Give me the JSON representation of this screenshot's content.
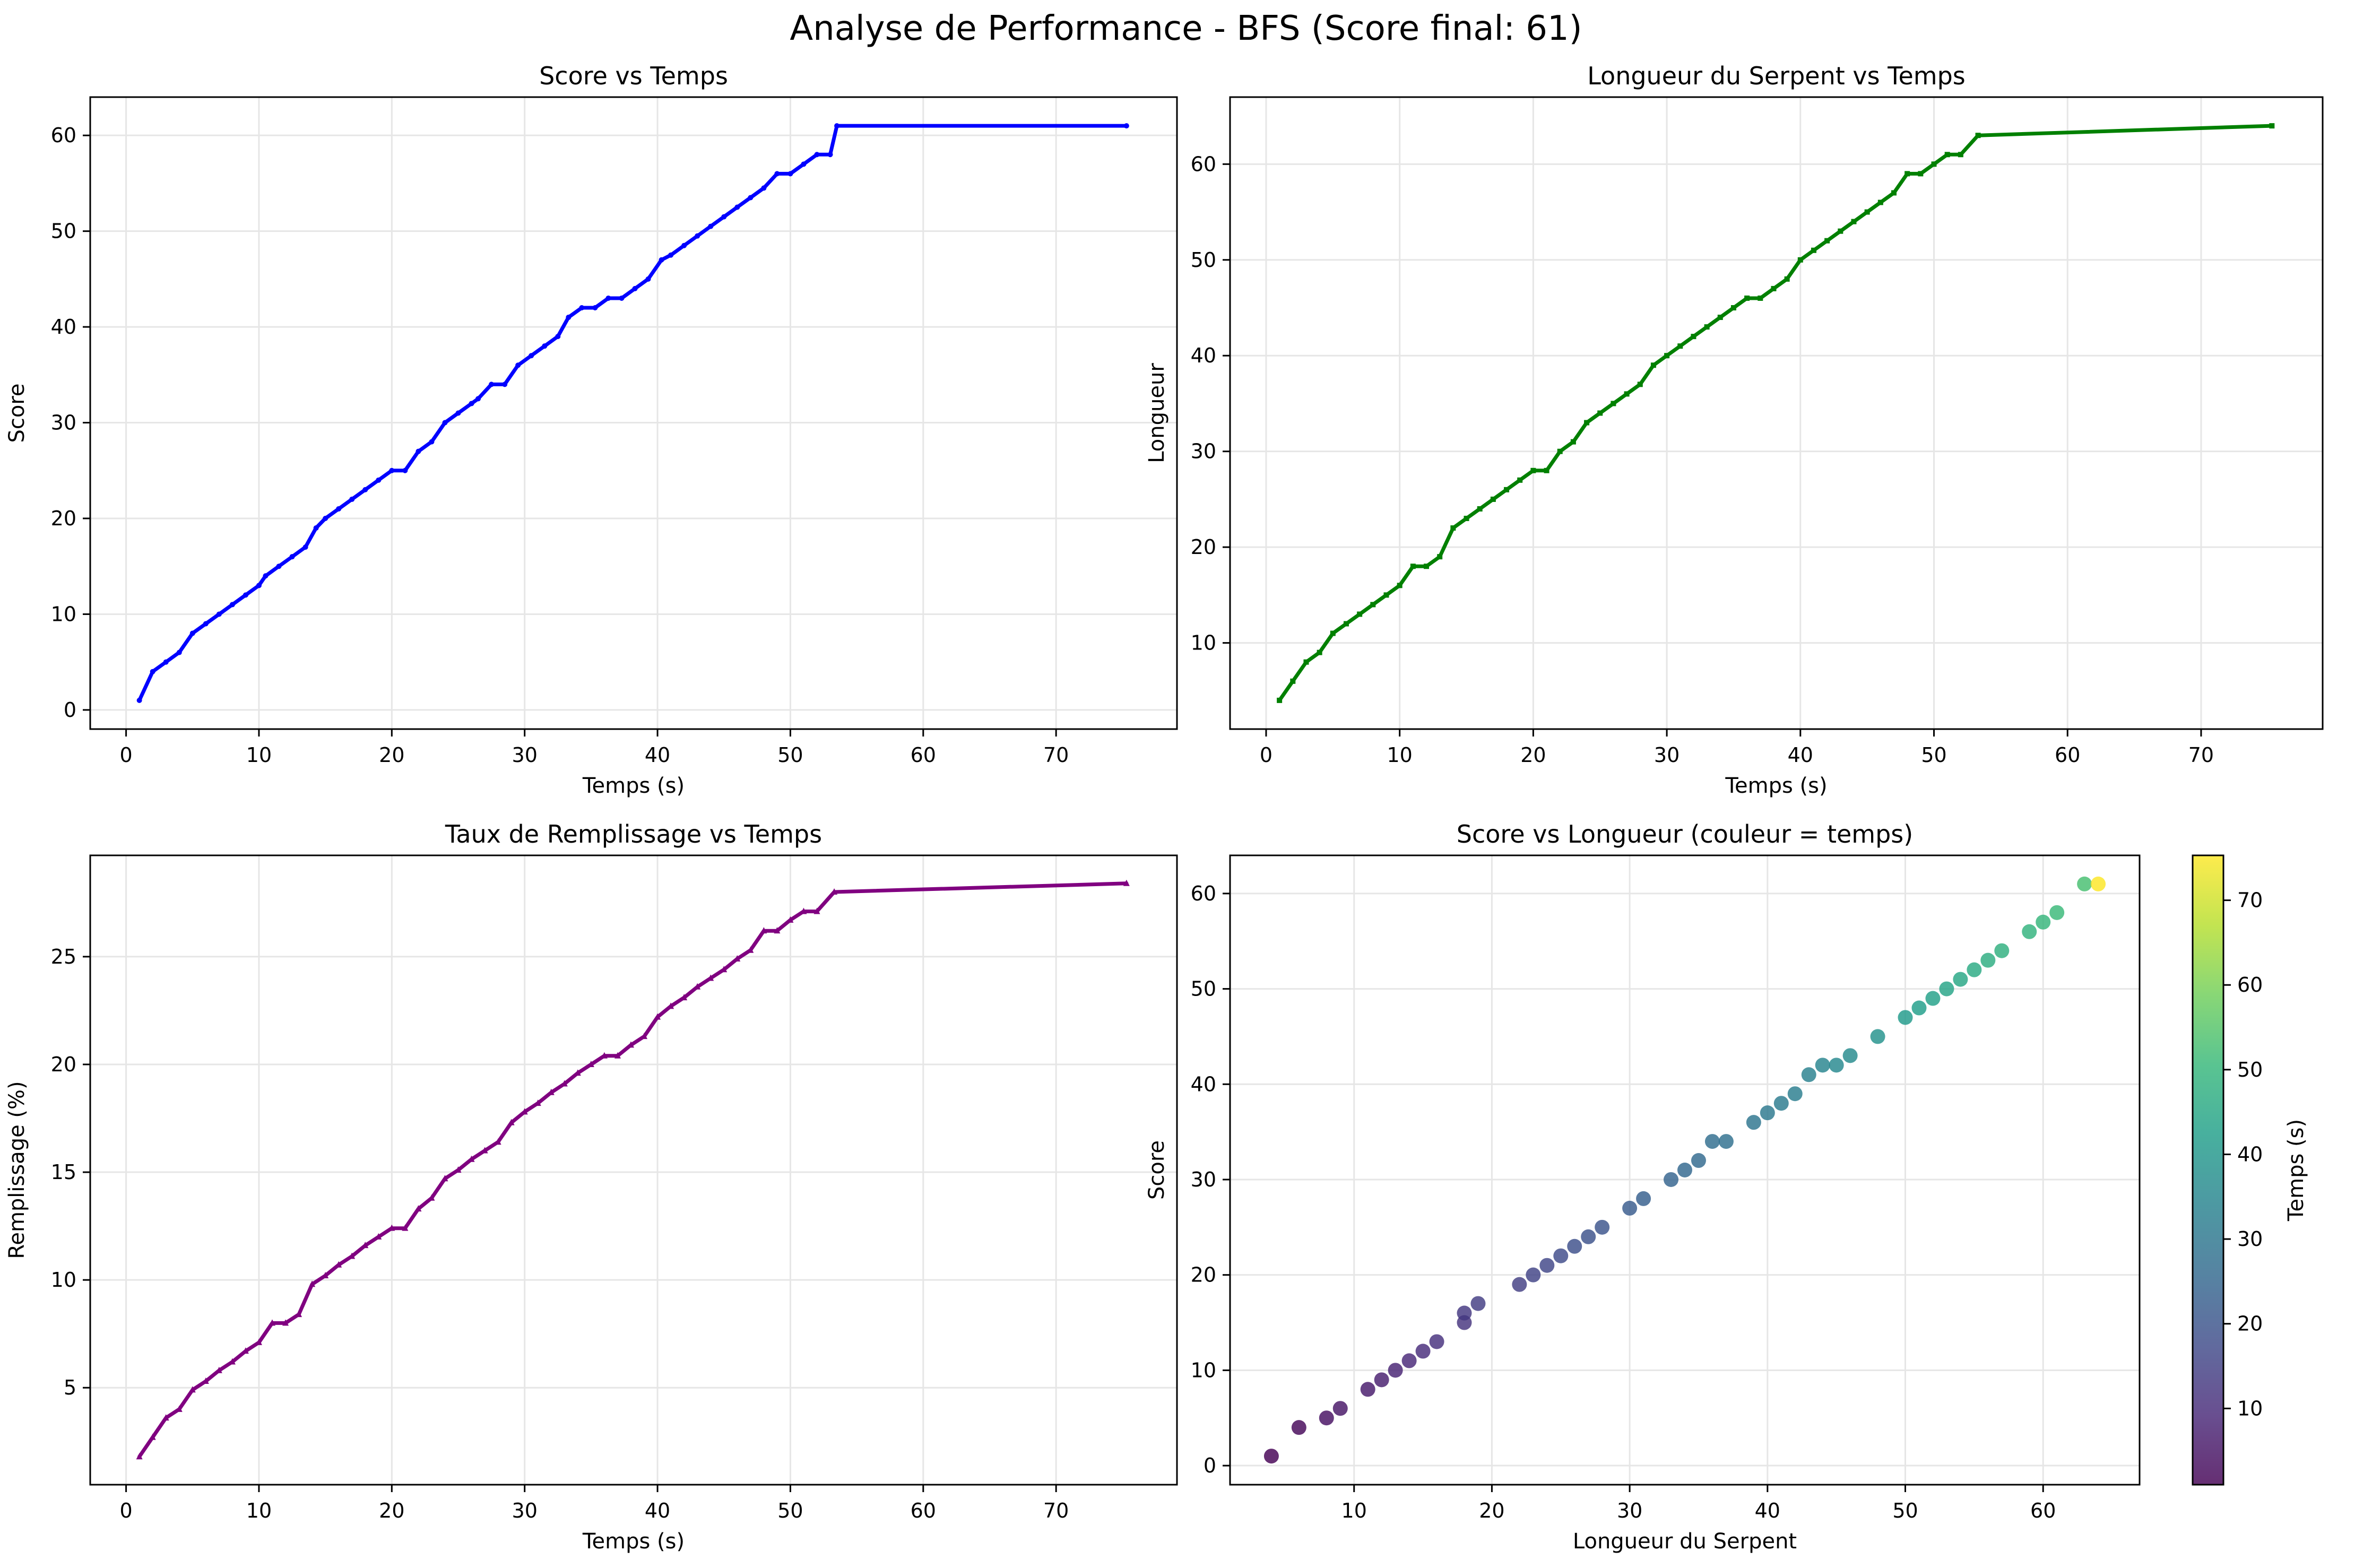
{
  "figure": {
    "title": "Analyse de Performance - BFS (Score final: 61)"
  },
  "colors": {
    "score": "#0000ff",
    "length": "#008000",
    "fill": "#800080",
    "grid": "#e6e6e6"
  },
  "chart_data": [
    {
      "type": "line",
      "title": "Score vs Temps",
      "xlabel": "Temps (s)",
      "ylabel": "Score",
      "xlim": [
        -2.7,
        79.1
      ],
      "ylim": [
        -2,
        64
      ],
      "xticks": [
        0,
        10,
        20,
        30,
        40,
        50,
        60,
        70
      ],
      "yticks": [
        0,
        10,
        20,
        30,
        40,
        50,
        60
      ],
      "grid": true,
      "series": [
        {
          "color": "#0000ff",
          "marker": "point",
          "x": [
            1,
            2,
            3,
            4,
            5,
            6,
            7,
            8,
            9,
            10,
            10.5,
            11.5,
            12.5,
            13.5,
            14.3,
            15,
            16,
            17,
            18,
            19,
            20,
            21,
            22,
            23,
            24,
            25,
            26,
            26.5,
            27.5,
            28.5,
            29.5,
            30.5,
            31.5,
            32.5,
            33.3,
            34.3,
            35.3,
            36.3,
            37.3,
            38.3,
            39.3,
            40.3,
            41,
            42,
            43,
            44,
            45,
            46,
            47,
            48,
            49,
            50,
            51,
            52,
            53,
            53.5,
            75.3
          ],
          "y": [
            1,
            4,
            5,
            6,
            8,
            9,
            10,
            11,
            12,
            13,
            14,
            15,
            16,
            17,
            19,
            20,
            21,
            22,
            23,
            24,
            25,
            25,
            27,
            28,
            30,
            31,
            32,
            32.5,
            34,
            34,
            36,
            37,
            38,
            39,
            41,
            42,
            42,
            43,
            43,
            44,
            45,
            47,
            47.5,
            48.5,
            49.5,
            50.5,
            51.5,
            52.5,
            53.5,
            54.5,
            56,
            56,
            57,
            58,
            58,
            61,
            61
          ]
        }
      ]
    },
    {
      "type": "line",
      "title": "Longueur du Serpent vs Temps",
      "xlabel": "Temps (s)",
      "ylabel": "Longueur",
      "xlim": [
        -2.7,
        79.1
      ],
      "ylim": [
        1,
        67
      ],
      "xticks": [
        0,
        10,
        20,
        30,
        40,
        50,
        60,
        70
      ],
      "yticks": [
        10,
        20,
        30,
        40,
        50,
        60
      ],
      "grid": true,
      "series": [
        {
          "color": "#008000",
          "marker": "square",
          "x": [
            1,
            2,
            3,
            4,
            5,
            6,
            7,
            8,
            9,
            10,
            11,
            12,
            13,
            14,
            15,
            16,
            17,
            18,
            19,
            20,
            21,
            22,
            23,
            24,
            25,
            26,
            27,
            28,
            29,
            30,
            31,
            32,
            33,
            34,
            35,
            36,
            37,
            38,
            39,
            40,
            41,
            42,
            43,
            44,
            45,
            46,
            47,
            48,
            49,
            50,
            51,
            52,
            53.3,
            75.3
          ],
          "y": [
            4,
            6,
            8,
            9,
            11,
            12,
            13,
            14,
            15,
            16,
            18,
            18,
            19,
            22,
            23,
            24,
            25,
            26,
            27,
            28,
            28,
            30,
            31,
            33,
            34,
            35,
            36,
            37,
            39,
            40,
            41,
            42,
            43,
            44,
            45,
            46,
            46,
            47,
            48,
            50,
            51,
            52,
            53,
            54,
            55,
            56,
            57,
            59,
            59,
            60,
            61,
            61,
            63,
            64
          ]
        }
      ]
    },
    {
      "type": "line",
      "title": "Taux de Remplissage vs Temps",
      "xlabel": "Temps (s)",
      "ylabel": "Remplissage (%)",
      "xlim": [
        -2.7,
        79.1
      ],
      "ylim": [
        0.5,
        29.7
      ],
      "xticks": [
        0,
        10,
        20,
        30,
        40,
        50,
        60,
        70
      ],
      "yticks": [
        5,
        10,
        15,
        20,
        25
      ],
      "grid": true,
      "series": [
        {
          "color": "#800080",
          "marker": "triangle",
          "x": [
            1,
            2,
            3,
            4,
            5,
            6,
            7,
            8,
            9,
            10,
            11,
            12,
            13,
            14,
            15,
            16,
            17,
            18,
            19,
            20,
            21,
            22,
            23,
            24,
            25,
            26,
            27,
            28,
            29,
            30,
            31,
            32,
            33,
            34,
            35,
            36,
            37,
            38,
            39,
            40,
            41,
            42,
            43,
            44,
            45,
            46,
            47,
            48,
            49,
            50,
            51,
            52,
            53.3,
            75.3
          ],
          "y": [
            1.8,
            2.7,
            3.6,
            4.0,
            4.9,
            5.3,
            5.8,
            6.2,
            6.7,
            7.1,
            8.0,
            8.0,
            8.4,
            9.8,
            10.2,
            10.7,
            11.1,
            11.6,
            12.0,
            12.4,
            12.4,
            13.3,
            13.8,
            14.7,
            15.1,
            15.6,
            16.0,
            16.4,
            17.3,
            17.8,
            18.2,
            18.7,
            19.1,
            19.6,
            20.0,
            20.4,
            20.4,
            20.9,
            21.3,
            22.2,
            22.7,
            23.1,
            23.6,
            24.0,
            24.4,
            24.9,
            25.3,
            26.2,
            26.2,
            26.7,
            27.1,
            27.1,
            28.0,
            28.4
          ]
        }
      ]
    },
    {
      "type": "scatter",
      "title": "Score vs Longueur (couleur = temps)",
      "xlabel": "Longueur du Serpent",
      "ylabel": "Score",
      "xlim": [
        1,
        67
      ],
      "ylim": [
        -2,
        64
      ],
      "xticks": [
        10,
        20,
        30,
        40,
        50,
        60
      ],
      "yticks": [
        0,
        10,
        20,
        30,
        40,
        50,
        60
      ],
      "grid": true,
      "colorbar": {
        "label": "Temps (s)",
        "colormap": "viridis",
        "range": [
          1,
          75.3
        ],
        "ticks": [
          10,
          20,
          30,
          40,
          50,
          60,
          70
        ]
      },
      "points": {
        "x": [
          4,
          6,
          8,
          9,
          11,
          12,
          13,
          14,
          15,
          16,
          18,
          18,
          19,
          22,
          23,
          24,
          25,
          26,
          27,
          28,
          30,
          31,
          33,
          34,
          35,
          36,
          37,
          39,
          40,
          41,
          42,
          43,
          44,
          45,
          46,
          48,
          50,
          51,
          52,
          53,
          54,
          55,
          56,
          57,
          59,
          60,
          61,
          63,
          64
        ],
        "y": [
          1,
          4,
          5,
          6,
          8,
          9,
          10,
          11,
          12,
          13,
          15,
          16,
          17,
          19,
          20,
          21,
          22,
          23,
          24,
          25,
          27,
          28,
          30,
          31,
          32,
          34,
          34,
          36,
          37,
          38,
          39,
          41,
          42,
          42,
          43,
          45,
          47,
          48,
          49,
          50,
          51,
          52,
          53,
          54,
          56,
          57,
          58,
          61,
          61
        ],
        "t": [
          1,
          2,
          4,
          5,
          6,
          7,
          8,
          9,
          10,
          11,
          12,
          13,
          14,
          14.5,
          15.5,
          16.5,
          17.5,
          18.5,
          19.5,
          20,
          22,
          23,
          24.5,
          25.5,
          26,
          27,
          28,
          29.5,
          30.5,
          31.5,
          32.5,
          33.5,
          34.5,
          35.5,
          36.5,
          38.5,
          41,
          42,
          43,
          44,
          45,
          46,
          47,
          48,
          49,
          50,
          51,
          53,
          75.3
        ]
      }
    }
  ]
}
